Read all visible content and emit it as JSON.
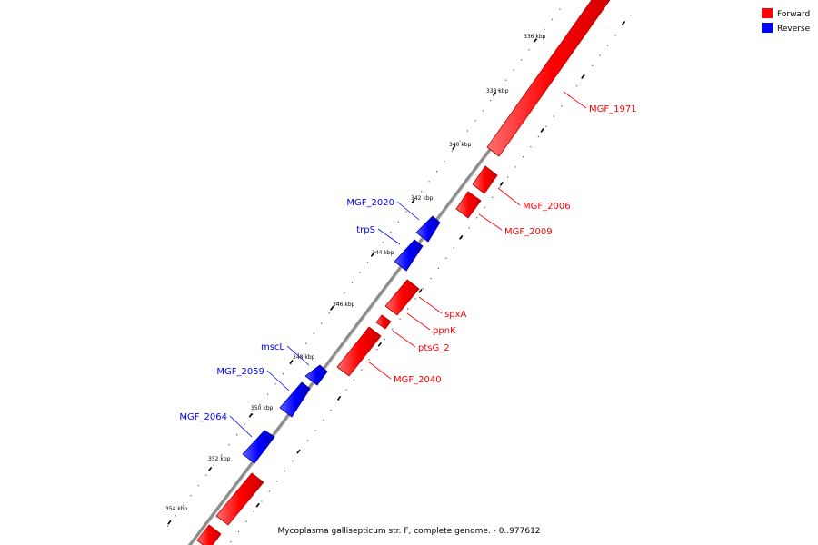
{
  "caption": "Mycoplasma gallisepticum str. F, complete genome. - 0..977612",
  "legend": [
    {
      "label": "Forward",
      "color": "#ff0000"
    },
    {
      "label": "Reverse",
      "color": "#0000ff"
    }
  ],
  "colors": {
    "forward": "#ff0000",
    "reverse": "#0000ff",
    "backbone": "#808080"
  },
  "ticks": [
    {
      "label": "336 kbp"
    },
    {
      "label": "338 kbp"
    },
    {
      "label": "340 kbp"
    },
    {
      "label": "342 kbp"
    },
    {
      "label": "344 kbp"
    },
    {
      "label": "346 kbp"
    },
    {
      "label": "348 kbp"
    },
    {
      "label": "350 kbp"
    },
    {
      "label": "352 kbp"
    },
    {
      "label": "354 kbp"
    }
  ],
  "genes": [
    {
      "name": "MGF_1971",
      "strand": "forward"
    },
    {
      "name": "MGF_2006",
      "strand": "forward"
    },
    {
      "name": "MGF_2009",
      "strand": "forward"
    },
    {
      "name": "spxA",
      "strand": "forward"
    },
    {
      "name": "ppnK",
      "strand": "forward"
    },
    {
      "name": "ptsG_2",
      "strand": "forward"
    },
    {
      "name": "MGF_2040",
      "strand": "forward"
    },
    {
      "name": "MGF_2020",
      "strand": "reverse"
    },
    {
      "name": "trpS",
      "strand": "reverse"
    },
    {
      "name": "mscL",
      "strand": "reverse"
    },
    {
      "name": "MGF_2059",
      "strand": "reverse"
    },
    {
      "name": "MGF_2064",
      "strand": "reverse"
    }
  ]
}
